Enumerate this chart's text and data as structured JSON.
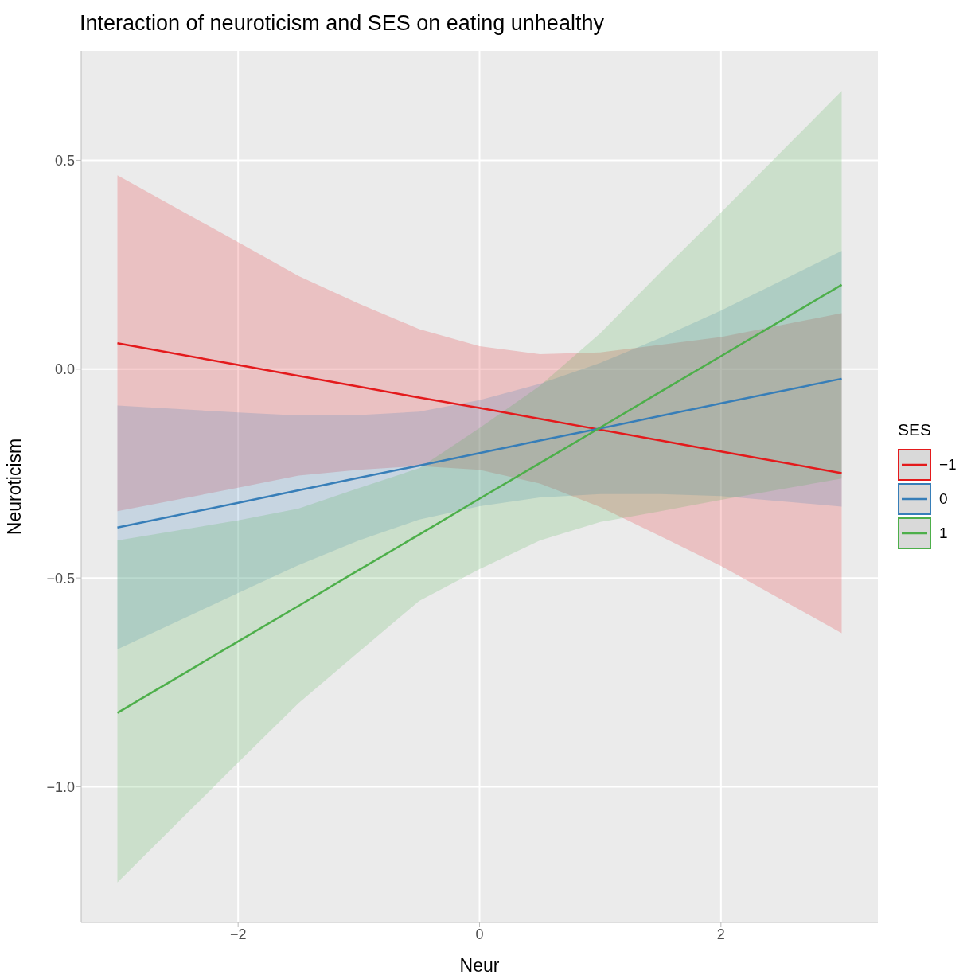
{
  "chart_data": {
    "type": "line",
    "title": "Interaction of neuroticism and SES on eating unhealthy",
    "xlabel": "Neur",
    "ylabel": "Neuroticism",
    "legend_title": "SES",
    "legend": "right",
    "grid": true,
    "x": [
      -3,
      -2,
      -1.5,
      -1,
      -0.5,
      0,
      0.5,
      1,
      1.5,
      2,
      3
    ],
    "xlim": [
      -3.3,
      3.3
    ],
    "xticks": [
      {
        "value": -2,
        "label": "−2"
      },
      0,
      2
    ],
    "ylim": [
      -1.325,
      0.762
    ],
    "yticks": [
      {
        "value": -1,
        "label": "−1.0"
      },
      {
        "value": -0.5,
        "label": "−0.5"
      },
      {
        "value": 0,
        "label": "0.0"
      },
      {
        "value": 0.5,
        "label": "0.5"
      }
    ],
    "series": [
      {
        "name": "−1",
        "color": "#e41a1c",
        "values": [
          0.062,
          0.01,
          -0.016,
          -0.042,
          -0.068,
          -0.093,
          -0.119,
          -0.145,
          -0.171,
          -0.197,
          -0.249
        ],
        "upper": [
          0.464,
          0.304,
          0.223,
          0.157,
          0.096,
          0.055,
          0.036,
          0.04,
          0.058,
          0.077,
          0.134
        ],
        "lower": [
          -0.34,
          -0.284,
          -0.255,
          -0.241,
          -0.232,
          -0.241,
          -0.274,
          -0.33,
          -0.4,
          -0.471,
          -0.632
        ]
      },
      {
        "name": "0",
        "color": "#377eb8",
        "values": [
          -0.379,
          -0.32,
          -0.29,
          -0.26,
          -0.231,
          -0.201,
          -0.171,
          -0.142,
          -0.112,
          -0.082,
          -0.023
        ],
        "upper": [
          -0.087,
          -0.104,
          -0.111,
          -0.11,
          -0.102,
          -0.074,
          -0.035,
          0.015,
          0.075,
          0.14,
          0.283
        ],
        "lower": [
          -0.671,
          -0.536,
          -0.469,
          -0.41,
          -0.36,
          -0.328,
          -0.307,
          -0.299,
          -0.299,
          -0.304,
          -0.329
        ]
      },
      {
        "name": "1",
        "color": "#4daf4a",
        "values": [
          -0.823,
          -0.652,
          -0.567,
          -0.481,
          -0.396,
          -0.31,
          -0.225,
          -0.14,
          -0.054,
          0.031,
          0.202
        ],
        "upper": [
          -0.41,
          -0.362,
          -0.334,
          -0.285,
          -0.237,
          -0.141,
          -0.04,
          0.086,
          0.232,
          0.375,
          0.666
        ],
        "lower": [
          -1.229,
          -0.942,
          -0.8,
          -0.677,
          -0.555,
          -0.479,
          -0.41,
          -0.366,
          -0.34,
          -0.313,
          -0.262
        ]
      }
    ]
  }
}
